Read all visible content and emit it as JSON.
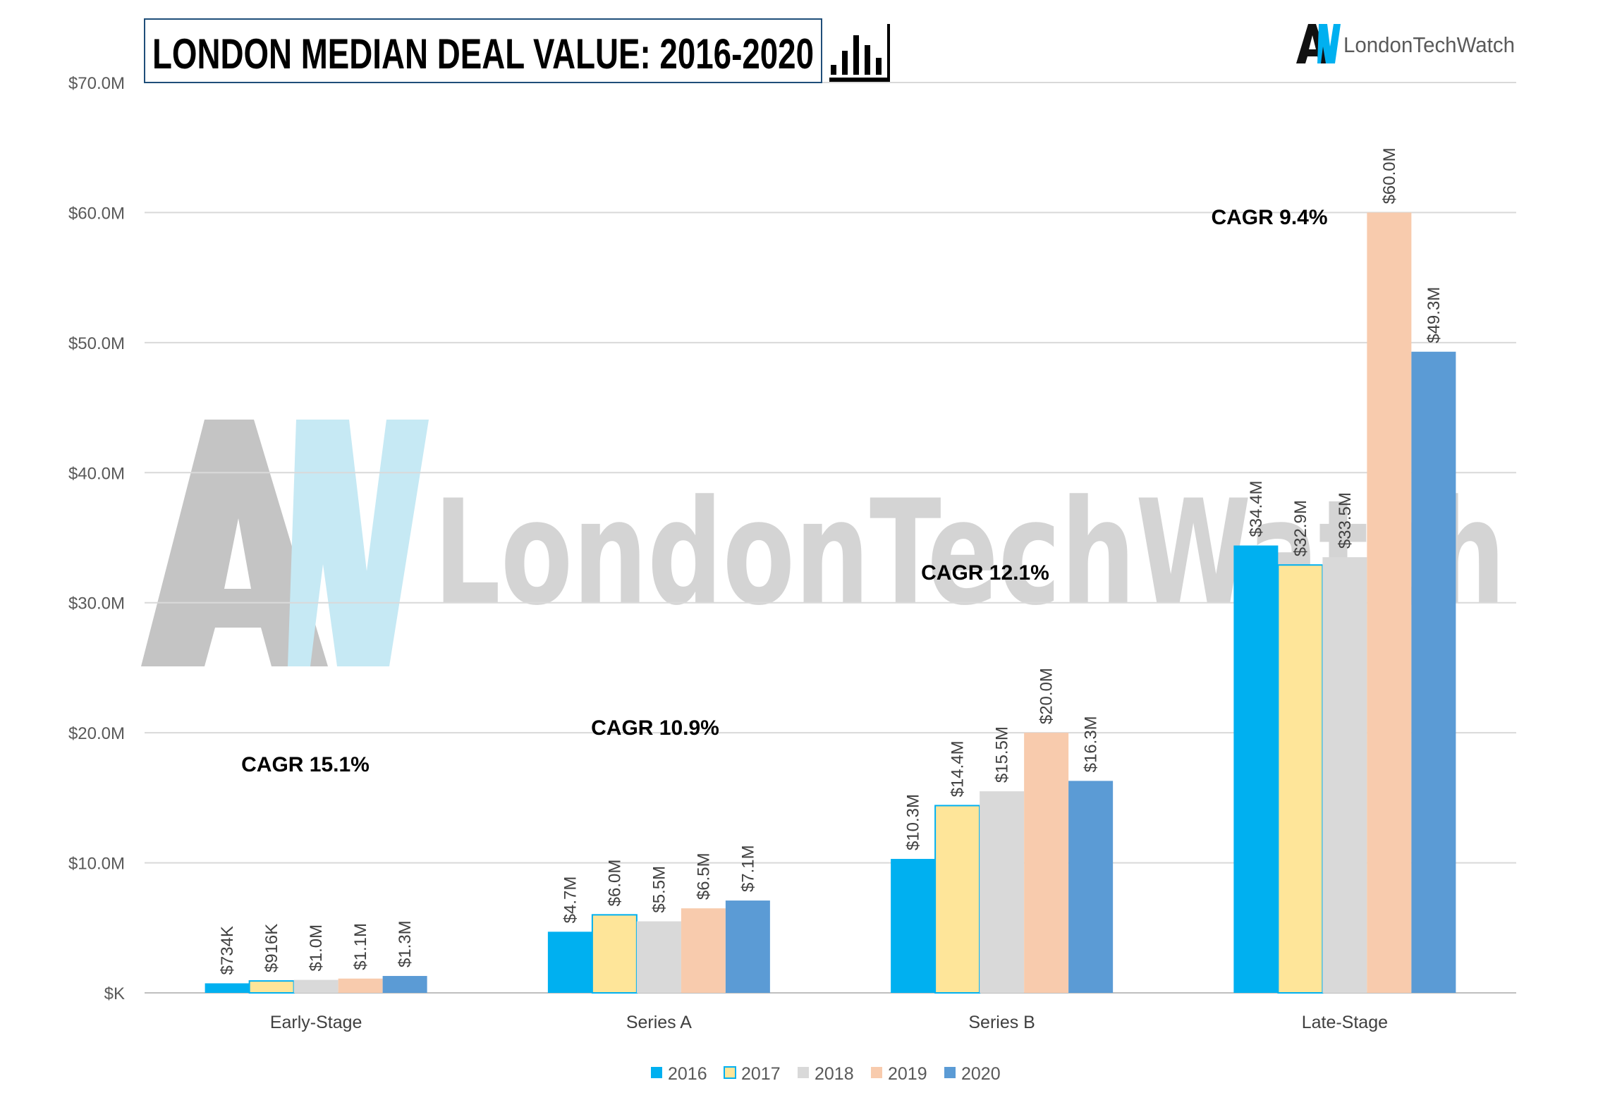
{
  "title": "LONDON MEDIAN DEAL VALUE: 2016-2020",
  "icons": {
    "title_icon": "bar-chart-icon",
    "logo_icon": "aw-logo-icon"
  },
  "brand": {
    "name": "LondonTechWatch",
    "watermark_text": "LondonTechWatch"
  },
  "chart_data": {
    "type": "bar",
    "categories": [
      "Early-Stage",
      "Series A",
      "Series B",
      "Late-Stage"
    ],
    "series": [
      {
        "name": "2016",
        "color": "#00b0f0",
        "values": [
          0.734,
          4.7,
          10.3,
          34.4
        ],
        "labels": [
          "$734K",
          "$4.7M",
          "$10.3M",
          "$34.4M"
        ]
      },
      {
        "name": "2017",
        "color": "#fee599",
        "stroke": "#00b0f0",
        "values": [
          0.916,
          6.0,
          14.4,
          32.9
        ],
        "labels": [
          "$916K",
          "$6.0M",
          "$14.4M",
          "$32.9M"
        ]
      },
      {
        "name": "2018",
        "color": "#d9d9d9",
        "values": [
          1.0,
          5.5,
          15.5,
          33.5
        ],
        "labels": [
          "$1.0M",
          "$5.5M",
          "$15.5M",
          "$33.5M"
        ]
      },
      {
        "name": "2019",
        "color": "#f8cbad",
        "values": [
          1.1,
          6.5,
          20.0,
          60.0
        ],
        "labels": [
          "$1.1M",
          "$6.5M",
          "$20.0M",
          "$60.0M"
        ]
      },
      {
        "name": "2020",
        "color": "#5b9bd5",
        "values": [
          1.3,
          7.1,
          16.3,
          49.3
        ],
        "labels": [
          "$1.3M",
          "$7.1M",
          "$16.3M",
          "$49.3M"
        ]
      }
    ],
    "ylim": [
      0,
      70
    ],
    "yticks": [
      0,
      10,
      20,
      30,
      40,
      50,
      60,
      70
    ],
    "ytick_labels": [
      "$K",
      "$10.0M",
      "$20.0M",
      "$30.0M",
      "$40.0M",
      "$50.0M",
      "$60.0M",
      "$70.0M"
    ],
    "annotations": [
      "CAGR 15.1%",
      "CAGR 10.9%",
      "CAGR 12.1%",
      "CAGR 9.4%"
    ],
    "xlabel": "",
    "ylabel": "",
    "grid": true,
    "legend": "bottom"
  }
}
